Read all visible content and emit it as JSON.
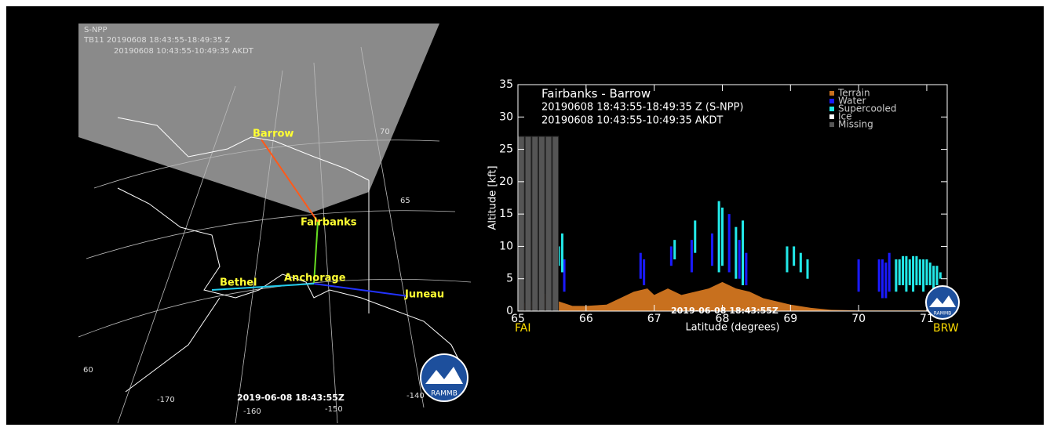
{
  "map": {
    "satellite": "S-NPP",
    "line1": "TB11 20190608 18:43:55-18:49:35 Z",
    "line2": "20190608 10:43:55-10:49:35 AKDT",
    "cities": [
      "Barrow",
      "Fairbanks",
      "Anchorage",
      "Bethel",
      "Juneau"
    ],
    "lat_labels": [
      "70",
      "65",
      "60"
    ],
    "lon_labels": [
      "-170",
      "-160",
      "-150",
      "-140"
    ],
    "timestamp": "2019-06-08 18:43:55Z",
    "logo": "RAMMB"
  },
  "chart_data": {
    "type": "profile",
    "title": "Fairbanks - Barrow",
    "subtitle": [
      "20190608 18:43:55-18:49:35 Z (S-NPP)",
      "20190608 10:43:55-10:49:35 AKDT"
    ],
    "xlabel": "Latitude (degrees)",
    "ylabel": "Altitude [kft]",
    "start_label": "FAI",
    "end_label": "BRW",
    "timestamp": "2019-06-08 18:43:55Z",
    "logo": "RAMMB",
    "xlim": [
      65,
      71.3
    ],
    "xticks": [
      65,
      66,
      67,
      68,
      69,
      70,
      71
    ],
    "ylim": [
      0,
      35
    ],
    "yticks": [
      0,
      5,
      10,
      15,
      20,
      25,
      30,
      35
    ],
    "series": [
      {
        "name": "Terrain",
        "color": "#c8701e",
        "kind": "area",
        "x": [
          65,
          65.2,
          65.35,
          65.5,
          65.6,
          65.8,
          66,
          66.3,
          66.5,
          66.7,
          66.9,
          67.0,
          67.2,
          67.4,
          67.6,
          67.8,
          68.0,
          68.2,
          68.4,
          68.6,
          68.8,
          69.0,
          69.3,
          69.6,
          70,
          71,
          71.3
        ],
        "values": [
          1,
          1.5,
          3,
          2,
          1.5,
          0.8,
          0.8,
          1,
          2,
          3,
          3.5,
          2.5,
          3.5,
          2.5,
          3,
          3.5,
          4.5,
          3.5,
          3,
          2,
          1.5,
          1,
          0.5,
          0.2,
          0.1,
          0.1,
          0.1
        ]
      },
      {
        "name": "Water",
        "color": "#1a1aff",
        "kind": "bars",
        "x": [
          65.68,
          66.8,
          66.85,
          67.25,
          67.55,
          67.85,
          68.1,
          68.25,
          68.35,
          70.0,
          70.3,
          70.35,
          70.4,
          70.45
        ],
        "base": [
          3,
          5,
          4,
          7,
          6,
          7,
          6,
          5,
          4,
          3,
          3,
          2,
          2,
          3
        ],
        "values": [
          8,
          9,
          8,
          10,
          11,
          12,
          15,
          11,
          9,
          8,
          8,
          8,
          7.5,
          9
        ]
      },
      {
        "name": "Supercooled",
        "color": "#22e8e8",
        "kind": "bars",
        "x": [
          65.6,
          65.65,
          67.3,
          67.6,
          67.95,
          68.0,
          68.2,
          68.3,
          68.95,
          69.05,
          69.15,
          69.25,
          70.55,
          70.6,
          70.65,
          70.7,
          70.75,
          70.8,
          70.85,
          70.9,
          70.95,
          71.0,
          71.05,
          71.1,
          71.15,
          71.2
        ],
        "base": [
          7,
          6,
          8,
          9,
          6,
          7,
          5,
          4,
          6,
          7,
          6,
          5,
          3,
          4,
          4,
          3,
          4,
          3,
          4,
          4,
          3,
          4,
          4,
          3,
          4,
          5
        ],
        "values": [
          10,
          12,
          11,
          14,
          17,
          16,
          13,
          14,
          10,
          10,
          9,
          8,
          8,
          8,
          8.5,
          8.5,
          8,
          8.5,
          8.5,
          8,
          8,
          8,
          7.5,
          7,
          7,
          6
        ]
      },
      {
        "name": "Ice",
        "color": "#ffffff",
        "kind": "bars",
        "x": [],
        "base": [],
        "values": []
      },
      {
        "name": "Missing",
        "color": "#555555",
        "kind": "bars",
        "x": [
          65.05,
          65.15,
          65.25,
          65.35,
          65.45,
          65.55
        ],
        "base": [
          0,
          0,
          0,
          0,
          0,
          0
        ],
        "values": [
          27,
          27,
          27,
          27,
          27,
          27
        ]
      }
    ]
  }
}
